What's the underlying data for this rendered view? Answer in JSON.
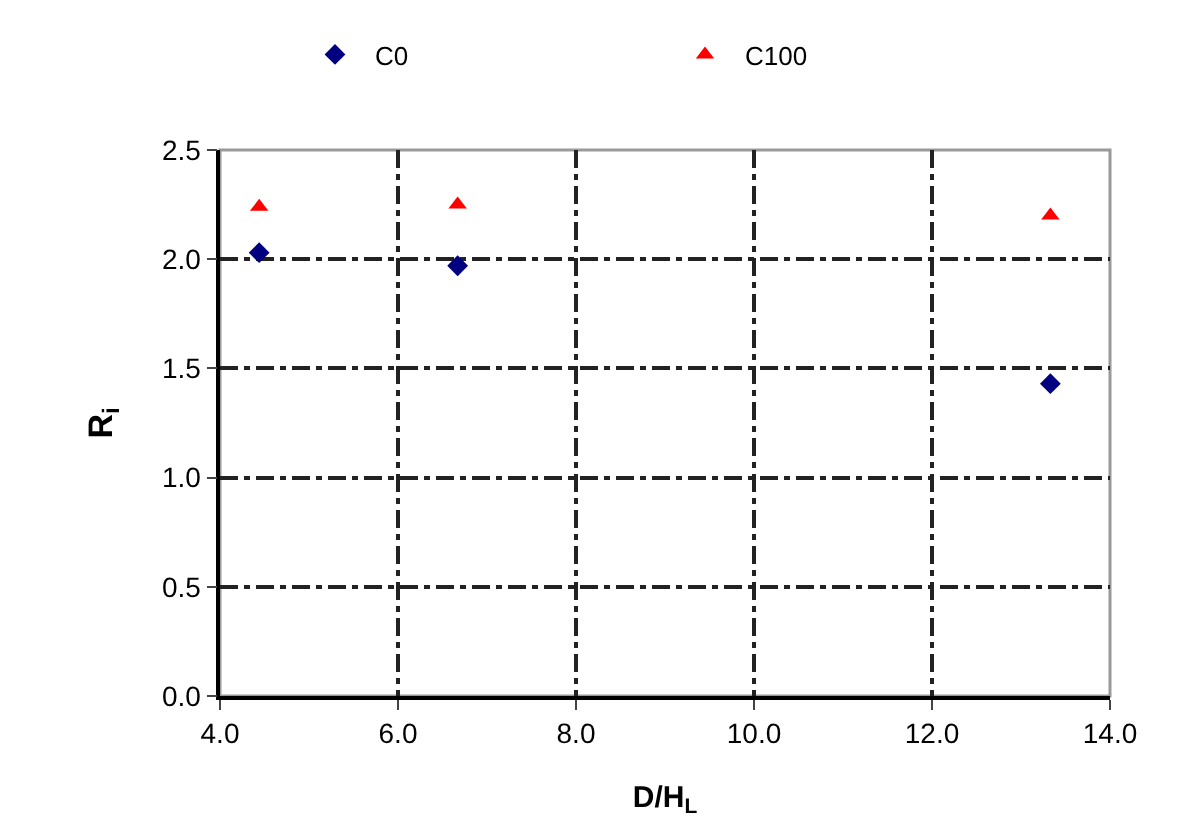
{
  "chart_data": {
    "type": "scatter",
    "xlabel": "D/H$_{L}$",
    "ylabel": "R$_{i}$",
    "x": [
      4.44,
      6.67,
      13.33
    ],
    "series": [
      {
        "name": "C0",
        "color": "#000080",
        "marker": "diamond",
        "values": [
          2.03,
          1.97,
          1.43
        ]
      },
      {
        "name": "C100",
        "color": "#ff0000",
        "marker": "triangle",
        "values": [
          2.24,
          2.25,
          2.2
        ]
      }
    ],
    "xlim": [
      4,
      14
    ],
    "xticks": [
      {
        "value": 4,
        "label": "4.0"
      },
      {
        "value": 6,
        "label": "6.0"
      },
      {
        "value": 8,
        "label": "8.0"
      },
      {
        "value": 10,
        "label": "10.0"
      },
      {
        "value": 12,
        "label": "12.0"
      },
      {
        "value": 14,
        "label": "14.0"
      }
    ],
    "ylim": [
      0,
      2.5
    ],
    "yticks": [
      {
        "value": 0,
        "label": "0.0"
      },
      {
        "value": 0.5,
        "label": "0.5"
      },
      {
        "value": 1,
        "label": "1.0"
      },
      {
        "value": 1.5,
        "label": "1.5"
      },
      {
        "value": 2,
        "label": "2.0"
      },
      {
        "value": 2.5,
        "label": "2.5"
      }
    ],
    "grid": true,
    "legend": "top"
  }
}
